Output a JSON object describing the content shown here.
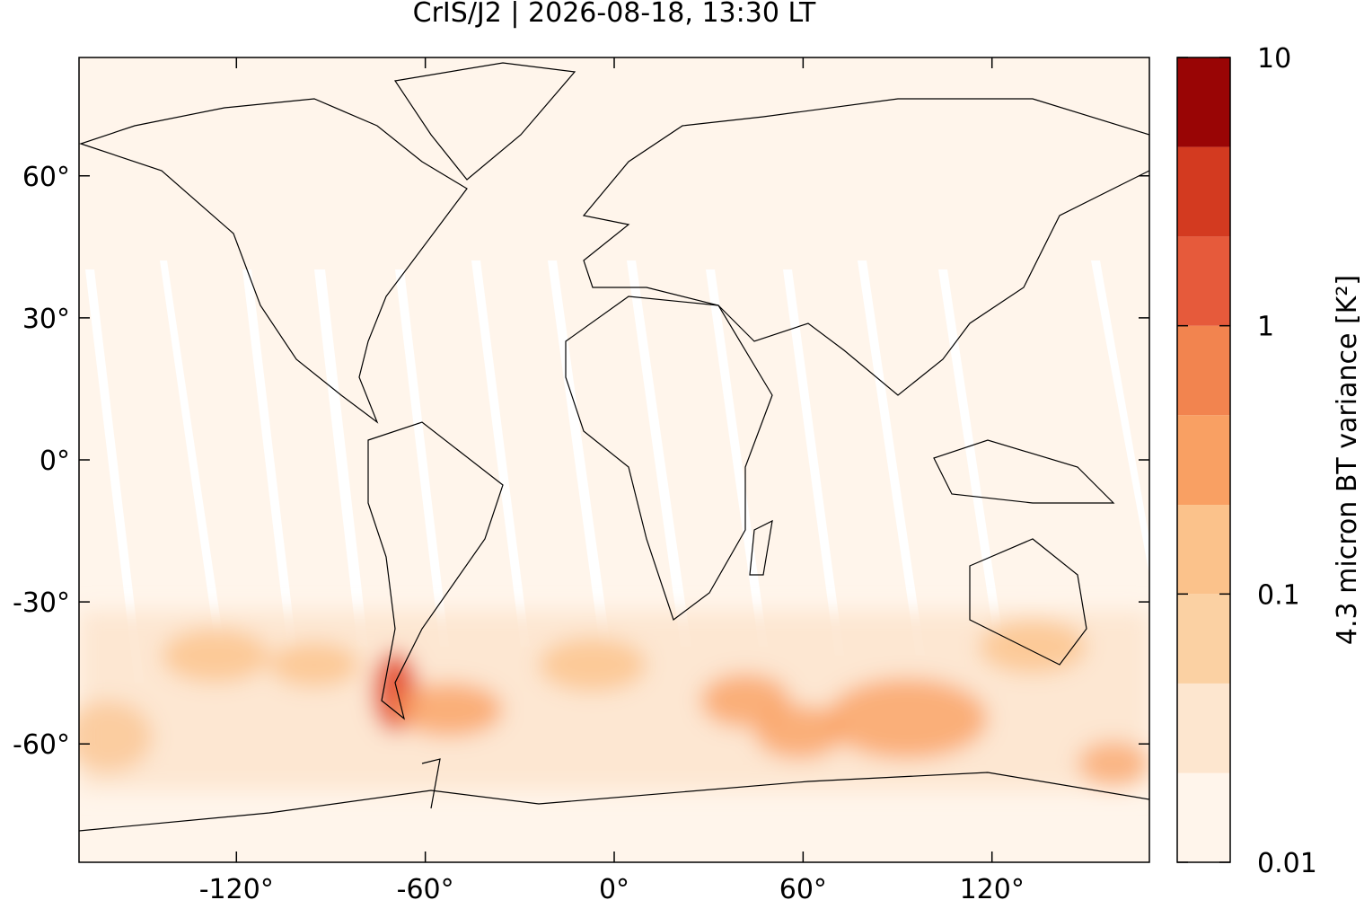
{
  "chart_data": {
    "type": "map",
    "title": "CrIS/J2 | 2026-08-18, 13:30 LT",
    "xlim": [
      -170,
      170
    ],
    "ylim": [
      -85,
      85
    ],
    "xticks": [
      {
        "value": -120,
        "label": "-120°"
      },
      {
        "value": -60,
        "label": "-60°"
      },
      {
        "value": 0,
        "label": "0°"
      },
      {
        "value": 60,
        "label": "60°"
      },
      {
        "value": 120,
        "label": "120°"
      }
    ],
    "yticks": [
      {
        "value": -60,
        "label": "-60°"
      },
      {
        "value": -30,
        "label": "-30°"
      },
      {
        "value": 0,
        "label": "0°"
      },
      {
        "value": 30,
        "label": "30°"
      },
      {
        "value": 60,
        "label": "60°"
      }
    ],
    "colorbar": {
      "label": "4.3 micron BT variance [K²]",
      "log_scale": true,
      "lim": [
        0.01,
        10
      ],
      "ticks": [
        0.01,
        0.1,
        1,
        10
      ],
      "levels": [
        0.01,
        0.0215,
        0.0464,
        0.1,
        0.215,
        0.464,
        1,
        2.15,
        4.64,
        10
      ],
      "colors": [
        "#fff5eb",
        "#fde6cf",
        "#fbd1a3",
        "#fbc28b",
        "#f9a063",
        "#f2844f",
        "#e65a3b",
        "#d33a20",
        "#990505"
      ]
    }
  }
}
